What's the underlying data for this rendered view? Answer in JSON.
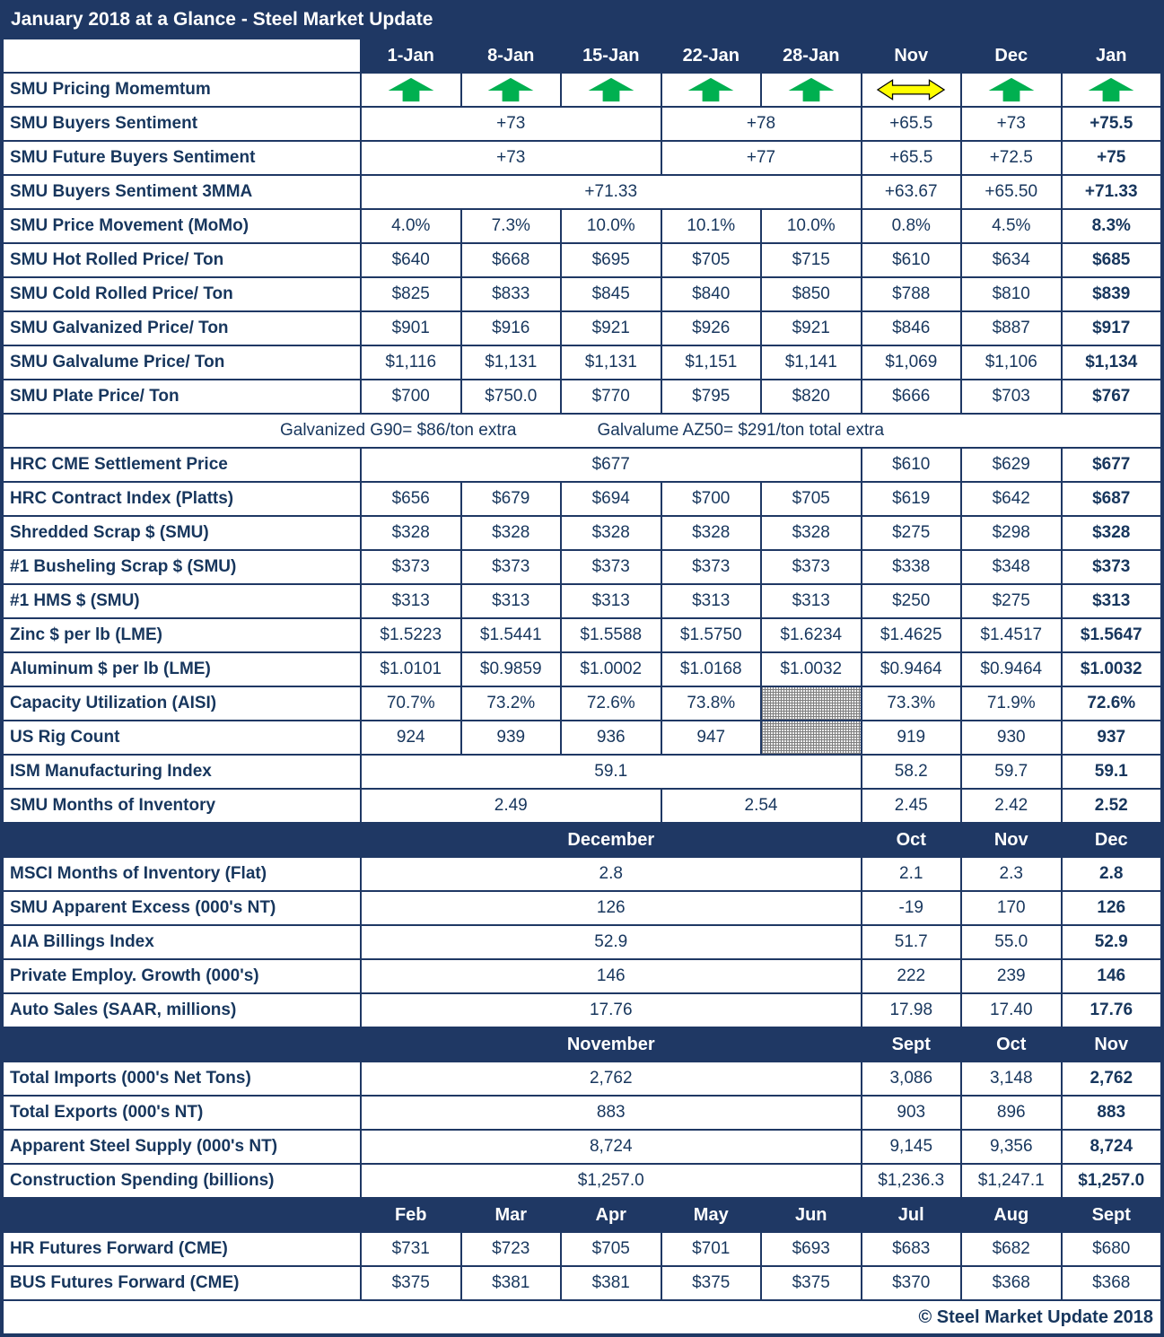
{
  "title": "January 2018 at a Glance - Steel Market Update",
  "footer": "© Steel Market Update 2018",
  "colors": {
    "navy": "#1F3864",
    "arrow_green": "#00B050",
    "arrow_yellow": "#FFFF00",
    "text": "#17365D"
  },
  "table": {
    "columns": [
      "1-Jan",
      "8-Jan",
      "15-Jan",
      "22-Jan",
      "28-Jan",
      "Nov",
      "Dec",
      "Jan"
    ],
    "rows": [
      {
        "label": "SMU Pricing Momemtum",
        "cells": [
          {
            "icon": "up"
          },
          {
            "icon": "up"
          },
          {
            "icon": "up"
          },
          {
            "icon": "up"
          },
          {
            "icon": "up"
          },
          {
            "icon": "leftright"
          },
          {
            "icon": "up"
          },
          {
            "icon": "up"
          }
        ]
      },
      {
        "label": "SMU Buyers Sentiment",
        "cells": [
          {
            "t": "+73",
            "span": 3
          },
          {
            "t": "+78",
            "span": 2
          },
          {
            "t": "+65.5"
          },
          {
            "t": "+73"
          },
          {
            "t": "+75.5",
            "b": true
          }
        ]
      },
      {
        "label": "SMU Future Buyers Sentiment",
        "cells": [
          {
            "t": "+73",
            "span": 3
          },
          {
            "t": "+77",
            "span": 2
          },
          {
            "t": "+65.5"
          },
          {
            "t": "+72.5"
          },
          {
            "t": "+75",
            "b": true
          }
        ]
      },
      {
        "label": "SMU Buyers Sentiment 3MMA",
        "cells": [
          {
            "t": "+71.33",
            "span": 5
          },
          {
            "t": "+63.67"
          },
          {
            "t": "+65.50"
          },
          {
            "t": "+71.33",
            "b": true
          }
        ]
      },
      {
        "label": "SMU Price Movement (MoMo)",
        "cells": [
          {
            "t": "4.0%"
          },
          {
            "t": "7.3%"
          },
          {
            "t": "10.0%"
          },
          {
            "t": "10.1%"
          },
          {
            "t": "10.0%"
          },
          {
            "t": "0.8%"
          },
          {
            "t": "4.5%"
          },
          {
            "t": "8.3%",
            "b": true
          }
        ]
      },
      {
        "label": "SMU Hot Rolled Price/ Ton",
        "cells": [
          {
            "t": "$640"
          },
          {
            "t": "$668"
          },
          {
            "t": "$695"
          },
          {
            "t": "$705"
          },
          {
            "t": "$715"
          },
          {
            "t": "$610"
          },
          {
            "t": "$634"
          },
          {
            "t": "$685",
            "b": true
          }
        ]
      },
      {
        "label": "SMU Cold Rolled Price/ Ton",
        "cells": [
          {
            "t": "$825"
          },
          {
            "t": "$833"
          },
          {
            "t": "$845"
          },
          {
            "t": "$840"
          },
          {
            "t": "$850"
          },
          {
            "t": "$788"
          },
          {
            "t": "$810"
          },
          {
            "t": "$839",
            "b": true
          }
        ]
      },
      {
        "label": "SMU Galvanized Price/ Ton",
        "cells": [
          {
            "t": "$901"
          },
          {
            "t": "$916"
          },
          {
            "t": "$921"
          },
          {
            "t": "$926"
          },
          {
            "t": "$921"
          },
          {
            "t": "$846"
          },
          {
            "t": "$887"
          },
          {
            "t": "$917",
            "b": true
          }
        ]
      },
      {
        "label": "SMU Galvalume Price/ Ton",
        "cells": [
          {
            "t": "$1,116"
          },
          {
            "t": "$1,131"
          },
          {
            "t": "$1,131"
          },
          {
            "t": "$1,151"
          },
          {
            "t": "$1,141"
          },
          {
            "t": "$1,069"
          },
          {
            "t": "$1,106"
          },
          {
            "t": "$1,134",
            "b": true
          }
        ]
      },
      {
        "label": "SMU Plate Price/ Ton",
        "cells": [
          {
            "t": "$700"
          },
          {
            "t": "$750.0"
          },
          {
            "t": "$770"
          },
          {
            "t": "$795"
          },
          {
            "t": "$820"
          },
          {
            "t": "$666"
          },
          {
            "t": "$703"
          },
          {
            "t": "$767",
            "b": true
          }
        ]
      },
      {
        "type": "note",
        "left": "Galvanized G90= $86/ton extra",
        "right": "Galvalume AZ50= $291/ton total extra"
      },
      {
        "label": "HRC CME Settlement Price",
        "cells": [
          {
            "t": "$677",
            "span": 5
          },
          {
            "t": "$610"
          },
          {
            "t": "$629"
          },
          {
            "t": "$677",
            "b": true
          }
        ]
      },
      {
        "label": "HRC Contract Index (Platts)",
        "cells": [
          {
            "t": "$656"
          },
          {
            "t": "$679"
          },
          {
            "t": "$694"
          },
          {
            "t": "$700"
          },
          {
            "t": "$705"
          },
          {
            "t": "$619"
          },
          {
            "t": "$642"
          },
          {
            "t": "$687",
            "b": true
          }
        ]
      },
      {
        "label": "Shredded Scrap $ (SMU)",
        "cells": [
          {
            "t": "$328"
          },
          {
            "t": "$328"
          },
          {
            "t": "$328"
          },
          {
            "t": "$328"
          },
          {
            "t": "$328"
          },
          {
            "t": "$275"
          },
          {
            "t": "$298"
          },
          {
            "t": "$328",
            "b": true
          }
        ]
      },
      {
        "label": "#1 Busheling Scrap $ (SMU)",
        "cells": [
          {
            "t": "$373"
          },
          {
            "t": "$373"
          },
          {
            "t": "$373"
          },
          {
            "t": "$373"
          },
          {
            "t": "$373"
          },
          {
            "t": "$338"
          },
          {
            "t": "$348"
          },
          {
            "t": "$373",
            "b": true
          }
        ]
      },
      {
        "label": "#1 HMS $ (SMU)",
        "cells": [
          {
            "t": "$313"
          },
          {
            "t": "$313"
          },
          {
            "t": "$313"
          },
          {
            "t": "$313"
          },
          {
            "t": "$313"
          },
          {
            "t": "$250"
          },
          {
            "t": "$275"
          },
          {
            "t": "$313",
            "b": true
          }
        ]
      },
      {
        "label": "Zinc $ per lb (LME)",
        "cells": [
          {
            "t": "$1.5223"
          },
          {
            "t": "$1.5441"
          },
          {
            "t": "$1.5588"
          },
          {
            "t": "$1.5750"
          },
          {
            "t": "$1.6234"
          },
          {
            "t": "$1.4625"
          },
          {
            "t": "$1.4517"
          },
          {
            "t": "$1.5647",
            "b": true
          }
        ]
      },
      {
        "label": "Aluminum $ per lb (LME)",
        "cells": [
          {
            "t": "$1.0101"
          },
          {
            "t": "$0.9859"
          },
          {
            "t": "$1.0002"
          },
          {
            "t": "$1.0168"
          },
          {
            "t": "$1.0032"
          },
          {
            "t": "$0.9464"
          },
          {
            "t": "$0.9464"
          },
          {
            "t": "$1.0032",
            "b": true
          }
        ]
      },
      {
        "label": "Capacity Utilization (AISI)",
        "cells": [
          {
            "t": "70.7%"
          },
          {
            "t": "73.2%"
          },
          {
            "t": "72.6%"
          },
          {
            "t": "73.8%"
          },
          {
            "hatch": true
          },
          {
            "t": "73.3%"
          },
          {
            "t": "71.9%"
          },
          {
            "t": "72.6%",
            "b": true
          }
        ]
      },
      {
        "label": "US Rig Count",
        "cells": [
          {
            "t": "924"
          },
          {
            "t": "939"
          },
          {
            "t": "936"
          },
          {
            "t": "947"
          },
          {
            "hatch": true
          },
          {
            "t": "919"
          },
          {
            "t": "930"
          },
          {
            "t": "937",
            "b": true
          }
        ]
      },
      {
        "label": "ISM Manufacturing Index",
        "cells": [
          {
            "t": "59.1",
            "span": 5
          },
          {
            "t": "58.2"
          },
          {
            "t": "59.7"
          },
          {
            "t": "59.1",
            "b": true
          }
        ]
      },
      {
        "label": "SMU Months of Inventory",
        "cells": [
          {
            "t": "2.49",
            "span": 3
          },
          {
            "t": "2.54",
            "span": 2
          },
          {
            "t": "2.45"
          },
          {
            "t": "2.42"
          },
          {
            "t": "2.52",
            "b": true
          }
        ]
      },
      {
        "type": "section",
        "label": "",
        "cells": [
          {
            "t": "December",
            "span": 5
          },
          {
            "t": "Oct"
          },
          {
            "t": "Nov"
          },
          {
            "t": "Dec"
          }
        ]
      },
      {
        "label": "MSCI Months of Inventory (Flat)",
        "cells": [
          {
            "t": "2.8",
            "span": 5
          },
          {
            "t": "2.1"
          },
          {
            "t": "2.3"
          },
          {
            "t": "2.8",
            "b": true
          }
        ]
      },
      {
        "label": "SMU Apparent Excess (000's NT)",
        "cells": [
          {
            "t": "126",
            "span": 5
          },
          {
            "t": "-19"
          },
          {
            "t": "170"
          },
          {
            "t": "126",
            "b": true
          }
        ]
      },
      {
        "label": "AIA Billings Index",
        "cells": [
          {
            "t": "52.9",
            "span": 5
          },
          {
            "t": "51.7"
          },
          {
            "t": "55.0"
          },
          {
            "t": "52.9",
            "b": true
          }
        ]
      },
      {
        "label": "Private Employ. Growth (000's)",
        "cells": [
          {
            "t": "146",
            "span": 5
          },
          {
            "t": "222"
          },
          {
            "t": "239"
          },
          {
            "t": "146",
            "b": true
          }
        ]
      },
      {
        "label": "Auto Sales (SAAR, millions)",
        "cells": [
          {
            "t": "17.76",
            "span": 5
          },
          {
            "t": "17.98"
          },
          {
            "t": "17.40"
          },
          {
            "t": "17.76",
            "b": true
          }
        ]
      },
      {
        "type": "section",
        "label": "",
        "cells": [
          {
            "t": "November",
            "span": 5
          },
          {
            "t": "Sept"
          },
          {
            "t": "Oct"
          },
          {
            "t": "Nov"
          }
        ]
      },
      {
        "label": "Total Imports (000's Net Tons)",
        "cells": [
          {
            "t": "2,762",
            "span": 5
          },
          {
            "t": "3,086"
          },
          {
            "t": "3,148"
          },
          {
            "t": "2,762",
            "b": true
          }
        ]
      },
      {
        "label": "Total Exports (000's NT)",
        "cells": [
          {
            "t": "883",
            "span": 5
          },
          {
            "t": "903"
          },
          {
            "t": "896"
          },
          {
            "t": "883",
            "b": true
          }
        ]
      },
      {
        "label": "Apparent Steel Supply (000's NT)",
        "cells": [
          {
            "t": "8,724",
            "span": 5
          },
          {
            "t": "9,145"
          },
          {
            "t": "9,356"
          },
          {
            "t": "8,724",
            "b": true
          }
        ]
      },
      {
        "label": "Construction Spending (billions)",
        "cells": [
          {
            "t": "$1,257.0",
            "span": 5
          },
          {
            "t": "$1,236.3"
          },
          {
            "t": "$1,247.1"
          },
          {
            "t": "$1,257.0",
            "b": true
          }
        ]
      },
      {
        "type": "section",
        "label": "",
        "cells": [
          {
            "t": "Feb"
          },
          {
            "t": "Mar"
          },
          {
            "t": "Apr"
          },
          {
            "t": "May"
          },
          {
            "t": "Jun"
          },
          {
            "t": "Jul"
          },
          {
            "t": "Aug"
          },
          {
            "t": "Sept"
          }
        ]
      },
      {
        "label": "HR Futures Forward (CME)",
        "cells": [
          {
            "t": "$731"
          },
          {
            "t": "$723"
          },
          {
            "t": "$705"
          },
          {
            "t": "$701"
          },
          {
            "t": "$693"
          },
          {
            "t": "$683"
          },
          {
            "t": "$682"
          },
          {
            "t": "$680"
          }
        ]
      },
      {
        "label": "BUS Futures Forward (CME)",
        "cells": [
          {
            "t": "$375"
          },
          {
            "t": "$381"
          },
          {
            "t": "$381"
          },
          {
            "t": "$375"
          },
          {
            "t": "$375"
          },
          {
            "t": "$370"
          },
          {
            "t": "$368"
          },
          {
            "t": "$368"
          }
        ]
      }
    ]
  }
}
